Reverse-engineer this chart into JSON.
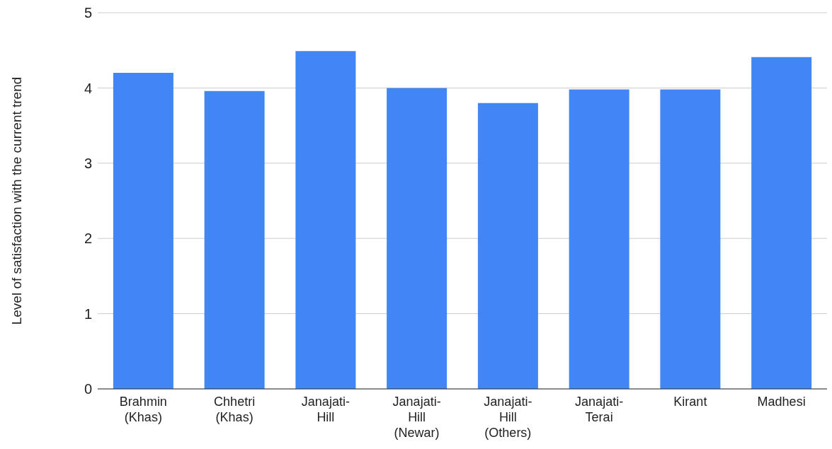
{
  "chart_data": {
    "type": "bar",
    "ylabel": "Level of satisfaction with the current trend",
    "categories": [
      "Brahmin\n(Khas)",
      "Chhetri\n(Khas)",
      "Janajati-\nHill",
      "Janajati-\nHill\n(Newar)",
      "Janajati-\nHill\n(Others)",
      "Janajati-\nTerai",
      "Kirant",
      "Madhesi"
    ],
    "values": [
      4.2,
      3.96,
      4.49,
      4.0,
      3.8,
      3.98,
      3.98,
      4.41
    ],
    "color": "#4285f4",
    "ylim": [
      0,
      5
    ],
    "yticks": [
      0,
      1,
      2,
      3,
      4,
      5
    ],
    "grid": "y"
  }
}
